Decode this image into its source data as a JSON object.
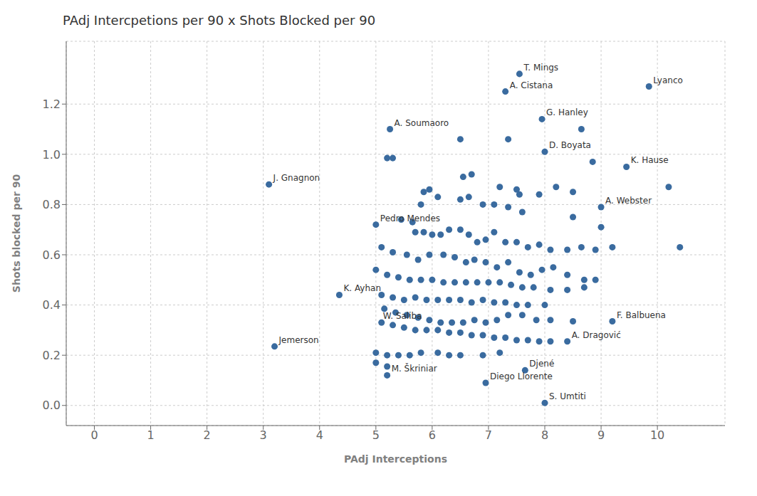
{
  "chart_data": {
    "type": "scatter",
    "title": "PAdj Intercpetions per 90 x Shots Blocked per 90",
    "x_label": "PAdj Interceptions",
    "y_label": "Shots blocked per 90",
    "color": "#3A6B9F",
    "grid": true,
    "xlim": [
      -0.5,
      11.2
    ],
    "ylim": [
      -0.08,
      1.45
    ],
    "xticks": [
      0,
      1,
      2,
      3,
      4,
      5,
      6,
      7,
      8,
      9,
      10
    ],
    "yticks": [
      {
        "value": 0,
        "label": "0.0"
      },
      0.2,
      0.4,
      0.6,
      0.8,
      {
        "value": 1,
        "label": "1.0"
      },
      1.2
    ],
    "x": [
      7.55,
      7.3,
      9.85,
      7.95,
      8.65,
      5.25,
      6.5,
      7.35,
      5.2,
      5.3,
      8.0,
      8.85,
      9.45,
      3.1,
      5.85,
      5.95,
      6.55,
      6.7,
      7.2,
      7.5,
      7.55,
      7.9,
      8.2,
      8.5,
      9.0,
      10.2,
      5.8,
      6.1,
      6.5,
      6.65,
      6.9,
      7.1,
      7.35,
      7.6,
      8.5,
      9.0,
      5.0,
      5.45,
      5.65,
      5.7,
      5.85,
      6.0,
      6.15,
      6.3,
      6.5,
      6.65,
      6.8,
      6.95,
      7.1,
      7.3,
      7.5,
      7.7,
      7.9,
      8.1,
      8.4,
      8.65,
      8.9,
      9.2,
      10.4,
      5.1,
      5.3,
      5.55,
      5.75,
      5.95,
      6.2,
      6.4,
      6.6,
      6.75,
      6.95,
      7.15,
      7.35,
      7.55,
      7.75,
      7.95,
      8.15,
      8.4,
      8.7,
      8.9,
      5.0,
      5.2,
      5.4,
      5.6,
      5.8,
      6.0,
      6.2,
      6.4,
      6.6,
      6.8,
      7.0,
      7.2,
      7.4,
      7.6,
      7.8,
      8.1,
      8.4,
      8.7,
      5.1,
      5.3,
      5.5,
      5.7,
      5.9,
      6.1,
      6.3,
      6.5,
      6.7,
      6.9,
      7.1,
      7.3,
      7.5,
      7.7,
      8.0,
      4.35,
      5.15,
      5.35,
      5.55,
      5.75,
      5.95,
      6.15,
      6.35,
      6.55,
      6.75,
      6.95,
      7.15,
      7.35,
      7.6,
      7.85,
      8.1,
      8.5,
      9.2,
      5.1,
      5.3,
      5.5,
      5.7,
      5.9,
      6.1,
      6.3,
      6.5,
      6.7,
      6.9,
      7.1,
      7.3,
      7.5,
      7.7,
      7.9,
      8.1,
      8.4,
      3.2,
      5.0,
      5.2,
      5.4,
      5.6,
      5.8,
      6.1,
      6.3,
      6.5,
      6.9,
      7.2,
      7.65,
      5.2,
      5.0,
      5.2,
      6.95,
      8.0
    ],
    "values": [
      1.32,
      1.25,
      1.27,
      1.14,
      1.1,
      1.1,
      1.06,
      1.06,
      0.985,
      0.985,
      1.01,
      0.97,
      0.95,
      0.88,
      0.85,
      0.86,
      0.91,
      0.92,
      0.87,
      0.86,
      0.84,
      0.84,
      0.87,
      0.85,
      0.79,
      0.87,
      0.8,
      0.83,
      0.82,
      0.83,
      0.8,
      0.8,
      0.79,
      0.77,
      0.75,
      0.71,
      0.72,
      0.74,
      0.73,
      0.69,
      0.69,
      0.68,
      0.68,
      0.7,
      0.7,
      0.68,
      0.65,
      0.66,
      0.69,
      0.65,
      0.65,
      0.63,
      0.64,
      0.62,
      0.62,
      0.63,
      0.62,
      0.63,
      0.63,
      0.63,
      0.61,
      0.6,
      0.58,
      0.6,
      0.6,
      0.59,
      0.57,
      0.58,
      0.57,
      0.55,
      0.57,
      0.53,
      0.52,
      0.54,
      0.55,
      0.52,
      0.5,
      0.5,
      0.54,
      0.52,
      0.51,
      0.5,
      0.5,
      0.5,
      0.49,
      0.49,
      0.49,
      0.49,
      0.49,
      0.49,
      0.48,
      0.47,
      0.47,
      0.46,
      0.46,
      0.47,
      0.44,
      0.43,
      0.42,
      0.43,
      0.42,
      0.42,
      0.42,
      0.42,
      0.41,
      0.42,
      0.41,
      0.41,
      0.4,
      0.4,
      0.4,
      0.44,
      0.385,
      0.37,
      0.36,
      0.35,
      0.34,
      0.33,
      0.33,
      0.33,
      0.34,
      0.33,
      0.34,
      0.36,
      0.36,
      0.34,
      0.34,
      0.335,
      0.335,
      0.33,
      0.32,
      0.31,
      0.3,
      0.3,
      0.3,
      0.29,
      0.29,
      0.28,
      0.28,
      0.27,
      0.27,
      0.26,
      0.26,
      0.255,
      0.255,
      0.255,
      0.235,
      0.21,
      0.2,
      0.2,
      0.2,
      0.21,
      0.21,
      0.2,
      0.2,
      0.2,
      0.21,
      0.14,
      0.12,
      0.17,
      0.155,
      0.09,
      0.01
    ],
    "annotations": [
      {
        "x": 7.55,
        "y": 1.32,
        "label": "T. Mings"
      },
      {
        "x": 7.3,
        "y": 1.25,
        "label": "A. Cistana"
      },
      {
        "x": 9.85,
        "y": 1.27,
        "label": "Lyanco"
      },
      {
        "x": 7.95,
        "y": 1.14,
        "label": "G. Hanley"
      },
      {
        "x": 5.25,
        "y": 1.1,
        "label": "A. Soumaoro"
      },
      {
        "x": 8.0,
        "y": 1.01,
        "label": "D. Boyata"
      },
      {
        "x": 3.1,
        "y": 0.88,
        "label": "J. Gnagnon"
      },
      {
        "x": 9.45,
        "y": 0.95,
        "label": "K. Hause"
      },
      {
        "x": 5.0,
        "y": 0.72,
        "label": "Pedro Mendes"
      },
      {
        "x": 9.0,
        "y": 0.79,
        "label": "A. Webster"
      },
      {
        "x": 4.35,
        "y": 0.44,
        "label": "K. Ayhan"
      },
      {
        "x": 5.05,
        "y": 0.33,
        "label": "W. Saliba"
      },
      {
        "x": 3.2,
        "y": 0.235,
        "label": "Jemerson"
      },
      {
        "x": 7.65,
        "y": 0.14,
        "label": "Djené"
      },
      {
        "x": 5.2,
        "y": 0.12,
        "label": "M. Škriniar"
      },
      {
        "x": 6.95,
        "y": 0.09,
        "label": "Diego Llorente"
      },
      {
        "x": 8.0,
        "y": 0.01,
        "label": "S. Umtiti"
      },
      {
        "x": 9.2,
        "y": 0.335,
        "label": "F. Balbuena"
      },
      {
        "x": 8.4,
        "y": 0.255,
        "label": "A. Dragović"
      }
    ]
  }
}
